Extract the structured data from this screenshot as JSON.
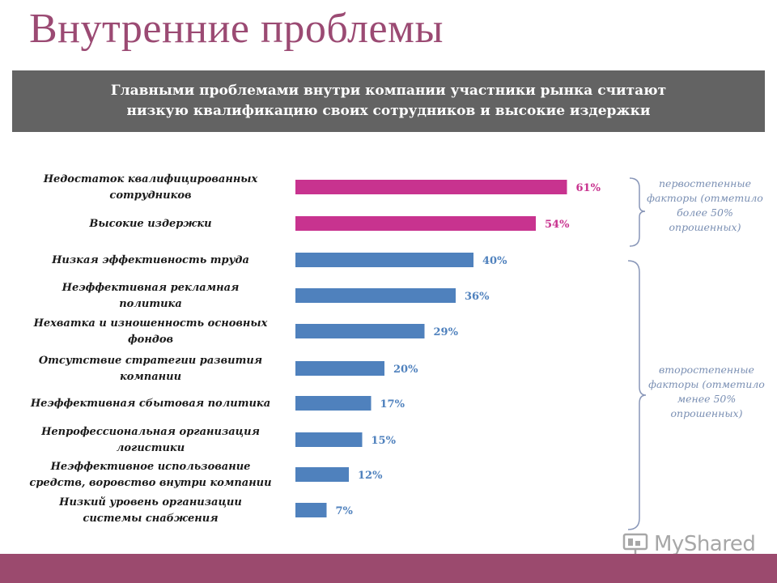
{
  "slide": {
    "title": "Внутренние проблемы",
    "subtitle_line1": "Главными проблемами внутри компании участники рынка считают",
    "subtitle_line2": "низкую квалификацию своих сотрудников и высокие издержки"
  },
  "notes": {
    "primary": "первостепенные факторы (отметило более 50% опрошенных)",
    "secondary": "второстепенные факторы (отметило менее 50% опрошенных)"
  },
  "watermark": {
    "text": "MyShared"
  },
  "colors": {
    "primary": "#c8338f",
    "secondary": "#4f81bd",
    "brace": "#8896b8"
  },
  "chart_data": {
    "type": "bar",
    "orientation": "horizontal",
    "categories": [
      [
        "Недостаток квалифицированных",
        "сотрудников"
      ],
      [
        "Высокие издержки"
      ],
      [
        "Низкая эффективность труда"
      ],
      [
        "Неэффективная рекламная",
        "политика"
      ],
      [
        "Нехватка и изношенность основных",
        "фондов"
      ],
      [
        "Отсутствие стратегии развития",
        "компании"
      ],
      [
        "Неэффективная сбытовая политика"
      ],
      [
        "Непрофессиональная организация",
        "логистики"
      ],
      [
        "Неэффективное использование",
        "средств, воровство внутри компании"
      ],
      [
        "Низкий уровень организации",
        "системы снабжения"
      ]
    ],
    "values": [
      61,
      54,
      40,
      36,
      29,
      20,
      17,
      15,
      12,
      7
    ],
    "value_labels": [
      "61%",
      "54%",
      "40%",
      "36%",
      "29%",
      "20%",
      "17%",
      "15%",
      "12%",
      "7%"
    ],
    "groups": [
      "primary",
      "primary",
      "secondary",
      "secondary",
      "secondary",
      "secondary",
      "secondary",
      "secondary",
      "secondary",
      "secondary"
    ]
  }
}
